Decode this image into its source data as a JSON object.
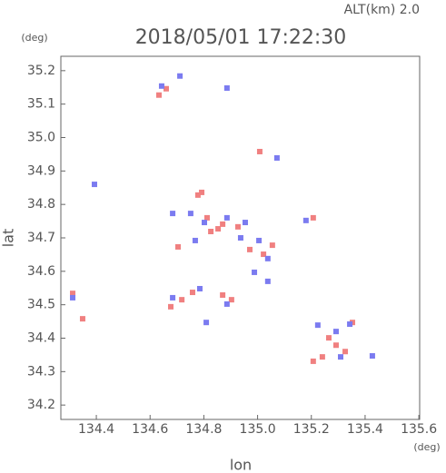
{
  "chart_data": {
    "type": "scatter",
    "title": "2018/05/01 17:22:30",
    "subtitle": "ALT(km) 2.0",
    "x_label": "lon",
    "y_label": "lat",
    "x_unit": "(deg)",
    "y_unit": "(deg)",
    "xlim": [
      134.268,
      135.603
    ],
    "ylim": [
      34.157,
      35.243
    ],
    "xticks": [
      134.4,
      134.6,
      134.8,
      {
        "value": 135.0,
        "label": "135.0"
      },
      135.2,
      135.4,
      135.6
    ],
    "yticks": [
      34.2,
      34.3,
      34.4,
      34.5,
      34.6,
      34.7,
      34.8,
      34.9,
      {
        "value": 35.0,
        "label": "35.0"
      },
      35.1,
      35.2
    ],
    "grid": false,
    "series": [
      {
        "color": "#f08080",
        "x": [
          134.312,
          134.349,
          134.633,
          134.66,
          134.778,
          134.792,
          134.812,
          134.87,
          134.826,
          134.927,
          134.971,
          135.022,
          135.008,
          135.055,
          135.207,
          134.704,
          134.718,
          134.758,
          134.87,
          134.903,
          134.677,
          134.853,
          135.241,
          135.292,
          135.326,
          135.353,
          135.207,
          135.265
        ],
        "values": [
          34.534,
          34.458,
          35.127,
          35.146,
          34.828,
          34.836,
          34.76,
          34.741,
          34.719,
          34.733,
          34.665,
          34.651,
          34.958,
          34.678,
          34.76,
          34.673,
          34.515,
          34.537,
          34.529,
          34.515,
          34.494,
          34.727,
          34.344,
          34.379,
          34.36,
          34.447,
          34.331,
          34.401
        ]
      },
      {
        "color": "#7b7bf0",
        "x": [
          134.312,
          134.393,
          134.711,
          134.643,
          134.886,
          135.072,
          134.684,
          134.751,
          134.802,
          134.886,
          134.954,
          134.937,
          135.005,
          135.038,
          135.038,
          134.988,
          135.18,
          134.809,
          134.785,
          134.886,
          134.684,
          135.292,
          135.343,
          135.224,
          135.427,
          135.309,
          134.768
        ],
        "values": [
          34.521,
          34.86,
          35.184,
          35.154,
          35.148,
          34.939,
          34.773,
          34.773,
          34.746,
          34.76,
          34.746,
          34.7,
          34.692,
          34.638,
          34.57,
          34.597,
          34.752,
          34.447,
          34.548,
          34.502,
          34.521,
          34.42,
          34.442,
          34.439,
          34.347,
          34.344,
          34.692
        ]
      }
    ]
  }
}
